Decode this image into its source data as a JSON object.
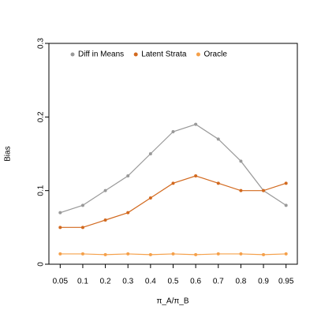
{
  "chart_data": {
    "type": "line",
    "x_label": "π_A/π_B",
    "y_label": "Bias",
    "categories": [
      "0.05",
      "0.1",
      "0.2",
      "0.3",
      "0.4",
      "0.5",
      "0.6",
      "0.7",
      "0.8",
      "0.9",
      "0.95"
    ],
    "ylim": [
      0,
      0.3
    ],
    "yticks": [
      0,
      0.1,
      0.2,
      0.3
    ],
    "legend": "top",
    "series": [
      {
        "name": "Diff in Means",
        "color": "#999999",
        "values": [
          0.07,
          0.08,
          0.1,
          0.12,
          0.15,
          0.18,
          0.19,
          0.17,
          0.14,
          0.1,
          0.08
        ]
      },
      {
        "name": "Latent Strata",
        "color": "#d2691e",
        "values": [
          0.05,
          0.05,
          0.06,
          0.07,
          0.09,
          0.11,
          0.12,
          0.11,
          0.1,
          0.1,
          0.11
        ]
      },
      {
        "name": "Oracle",
        "color": "#f5a04a",
        "values": [
          0.014,
          0.014,
          0.013,
          0.014,
          0.013,
          0.014,
          0.013,
          0.014,
          0.014,
          0.013,
          0.014
        ]
      }
    ]
  }
}
